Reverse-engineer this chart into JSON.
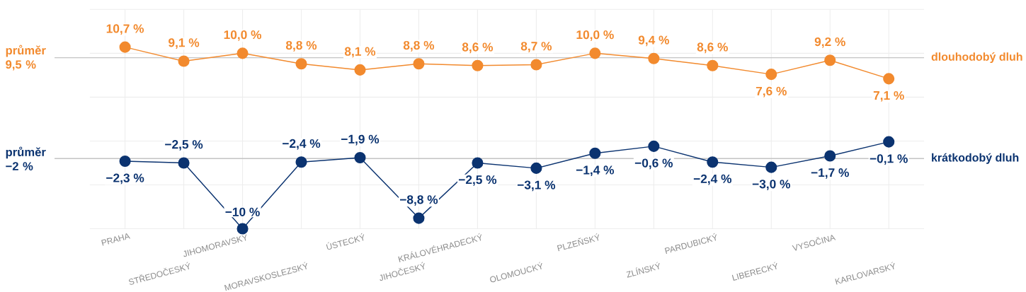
{
  "chart_data": {
    "type": "line",
    "categories": [
      "PRAHA",
      "STŘEDOČESKÝ",
      "JIHOMORAVSKÝ",
      "MORAVSKOSLEZSKÝ",
      "ÚSTECKÝ",
      "JIHOČESKÝ",
      "KRÁLOVÉHRADECKÝ",
      "OLOMOUCKÝ",
      "PLZEŇSKÝ",
      "ZLÍNSKÝ",
      "PARDUBICKÝ",
      "LIBERECKÝ",
      "VYSOČINA",
      "KARLOVARSKÝ"
    ],
    "series": [
      {
        "name": "dlouhodobý dluh",
        "color": "#f28a2e",
        "values": [
          10.7,
          9.1,
          10.0,
          8.8,
          8.1,
          8.8,
          8.6,
          8.7,
          10.0,
          9.4,
          8.6,
          7.6,
          9.2,
          7.1
        ],
        "value_labels": [
          "10,7 %",
          "9,1 %",
          "10,0 %",
          "8,8 %",
          "8,1 %",
          "8,8 %",
          "8,6 %",
          "8,7 %",
          "10,0 %",
          "9,4 %",
          "8,6 %",
          "7,6 %",
          "9,2 %",
          "7,1 %"
        ]
      },
      {
        "name": "krátkodobý dluh",
        "color": "#0b3370",
        "values": [
          -2.3,
          -2.5,
          -10,
          -2.4,
          -1.9,
          -8.8,
          -2.5,
          -3.1,
          -1.4,
          -0.6,
          -2.4,
          -3.0,
          -1.7,
          -0.1
        ],
        "value_labels": [
          "−2,3 %",
          "−2,5 %",
          "−10 %",
          "−2,4 %",
          "−1,9 %",
          "−8,8 %",
          "−2,5 %",
          "−3,1 %",
          "−1,4 %",
          "−0,6 %",
          "−2,4 %",
          "−3,0 %",
          "−1,7 %",
          "−0,1 %"
        ]
      }
    ],
    "ref_lines": [
      {
        "axis": "y",
        "value": 9.5,
        "label": "průměr 9,5 %",
        "color": "#c4c4c4"
      },
      {
        "axis": "y",
        "value": -2,
        "label": "průměr −2 %",
        "color": "#c4c4c4"
      }
    ],
    "ylim": [
      -10,
      15
    ],
    "yticks": [
      {
        "value": -10,
        "label": null
      },
      {
        "value": -5,
        "label": null
      },
      {
        "value": 0,
        "label": null
      },
      {
        "value": 5,
        "label": null
      },
      {
        "value": 10,
        "label": null
      },
      {
        "value": 15,
        "label": null
      }
    ],
    "tick_labels": "x",
    "grid": true,
    "marker": "circle",
    "line_style": "solid"
  }
}
